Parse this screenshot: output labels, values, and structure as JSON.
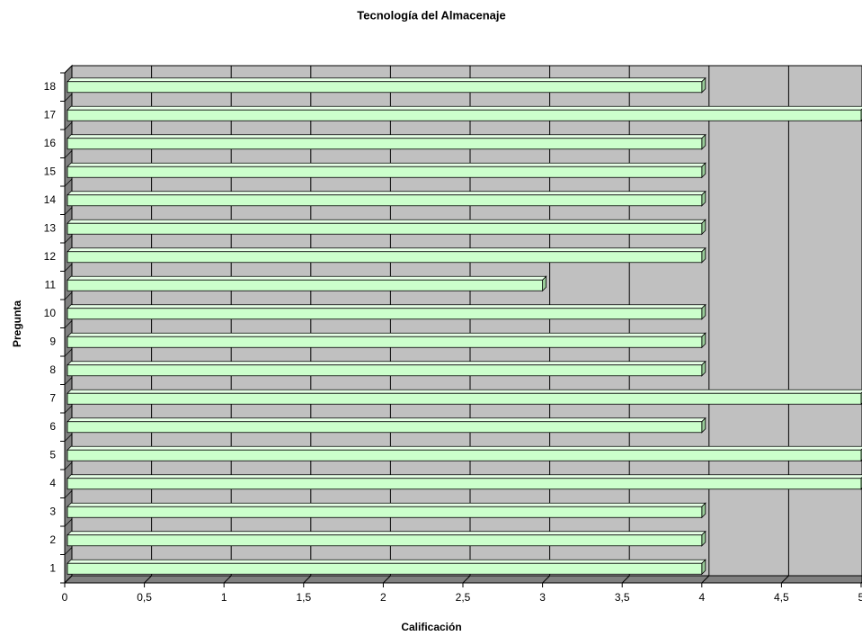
{
  "chart_data": {
    "type": "bar",
    "orientation": "horizontal",
    "title": "Tecnología del Almacenaje",
    "x_label": "Calificación",
    "y_label": "Pregunta",
    "categories": [
      "1",
      "2",
      "3",
      "4",
      "5",
      "6",
      "7",
      "8",
      "9",
      "10",
      "11",
      "12",
      "13",
      "14",
      "15",
      "16",
      "17",
      "18"
    ],
    "values": [
      4,
      4,
      4,
      5,
      5,
      4,
      5,
      4,
      4,
      4,
      3,
      4,
      4,
      4,
      4,
      4,
      5,
      4
    ],
    "color": "#ccffcc",
    "wall_color": "#c0c0c0",
    "xlim": [
      0,
      5
    ],
    "xticks": [
      0,
      {
        "value": 0.5,
        "label": "0,5"
      },
      1,
      {
        "value": 1.5,
        "label": "1,5"
      },
      2,
      {
        "value": 2.5,
        "label": "2,5"
      },
      3,
      {
        "value": 3.5,
        "label": "3,5"
      },
      4,
      {
        "value": 4.5,
        "label": "4,5"
      },
      5
    ],
    "grid": true
  }
}
